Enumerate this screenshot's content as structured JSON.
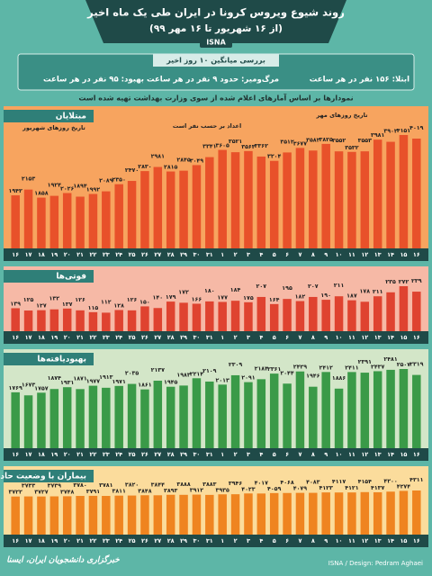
{
  "header": {
    "title": "روند شیوع ویروس کرونا در ایران طی یک ماه اخیر",
    "subtitle": "(از ۱۶ شهریور تا ۱۶ مهر ۹۹)",
    "agency": "ISNA"
  },
  "summary": {
    "heading": "بررسی میانگین ۱۰ روز اخیر",
    "items": [
      "ابتلا: ۱۵۶ نفر در هر ساعت",
      "مرگ‌ومیر: حدود ۹ نفر در هر ساعت",
      "بهبود: ۹۵ نفر در هر ساعت"
    ]
  },
  "note": "نمودارها بر اساس آمارهای اعلام شده از سوی وزارت بهداشت تهیه شده است",
  "chart_data": [
    {
      "type": "bar",
      "title": "مبتلایان",
      "color": "#e8512a",
      "annotations": [
        "تاریخ روزهای شهریور",
        "تاریخ روزهای مهر",
        "اعداد بر حسب نفر است"
      ],
      "categories": [
        "۱۶",
        "۱۷",
        "۱۸",
        "۱۹",
        "۲۰",
        "۲۱",
        "۲۲",
        "۲۳",
        "۲۴",
        "۲۵",
        "۲۶",
        "۲۷",
        "۲۸",
        "۲۹",
        "۳۰",
        "۳۱",
        "۱",
        "۲",
        "۳",
        "۴",
        "۵",
        "۶",
        "۷",
        "۸",
        "۹",
        "۱۰",
        "۱۱",
        "۱۲",
        "۱۳",
        "۱۴",
        "۱۵",
        "۱۶"
      ],
      "values": [
        1942,
        2153,
        1858,
        1924,
        2026,
        1894,
        1992,
        2089,
        2350,
        2470,
        2830,
        2981,
        2815,
        2845,
        3049,
        3341,
        3605,
        3521,
        3563,
        3362,
        3204,
        3512,
        3677,
        3582,
        3825,
        3552,
        3532,
        3553,
        3981,
        3902,
        4151,
        4019
      ],
      "value_labels": [
        "۱۹۴۲",
        "۲۱۵۳",
        "۱۸۵۸",
        "۱۹۲۴",
        "۲۰۲۶",
        "۱۸۹۴",
        "۱۹۹۲",
        "۲۰۸۹",
        "۲۳۵۰",
        "۲۴۷۰",
        "۲۸۳۰",
        "۲۹۸۱",
        "۲۸۱۵",
        "۲۸۴۵",
        "۳۰۴۹",
        "۳۳۴۱",
        "۳۶۰۵",
        "۳۵۲۱",
        "۳۵۶۳",
        "۳۳۶۲",
        "۳۲۰۴",
        "۳۵۱۲",
        "۳۶۷۷",
        "۳۵۸۲",
        "۳۸۲۵",
        "۳۵۵۲",
        "۳۵۳۲",
        "۳۵۵۳",
        "۳۹۸۱",
        "۳۹۰۲",
        "۴۱۵۱",
        "۴۰۱۹"
      ]
    },
    {
      "type": "bar",
      "title": "فوتی‌ها",
      "color": "#df4330",
      "categories": [
        "۱۶",
        "۱۷",
        "۱۸",
        "۱۹",
        "۲۰",
        "۲۱",
        "۲۲",
        "۲۳",
        "۲۴",
        "۲۵",
        "۲۶",
        "۲۷",
        "۲۸",
        "۲۹",
        "۳۰",
        "۳۱",
        "۱",
        "۲",
        "۳",
        "۴",
        "۵",
        "۶",
        "۷",
        "۸",
        "۹",
        "۱۰",
        "۱۱",
        "۱۲",
        "۱۳",
        "۱۴",
        "۱۵",
        "۱۶"
      ],
      "values": [
        139,
        125,
        127,
        132,
        137,
        126,
        115,
        112,
        128,
        126,
        150,
        140,
        179,
        172,
        166,
        180,
        177,
        184,
        175,
        207,
        164,
        195,
        182,
        207,
        190,
        211,
        187,
        178,
        211,
        235,
        272,
        239
      ],
      "value_labels": [
        "۱۳۹",
        "۱۲۵",
        "۱۲۷",
        "۱۳۲",
        "۱۳۷",
        "۱۲۶",
        "۱۱۵",
        "۱۱۲",
        "۱۲۸",
        "۱۲۶",
        "۱۵۰",
        "۱۴۰",
        "۱۷۹",
        "۱۷۲",
        "۱۶۶",
        "۱۸۰",
        "۱۷۷",
        "۱۸۴",
        "۱۷۵",
        "۲۰۷",
        "۱۶۴",
        "۱۹۵",
        "۱۸۲",
        "۲۰۷",
        "۱۹۰",
        "۲۱۱",
        "۱۸۷",
        "۱۷۸",
        "۲۱۱",
        "۲۳۵",
        "۲۷۲",
        "۲۳۹"
      ]
    },
    {
      "type": "bar",
      "title": "بهبودیافته‌ها",
      "color": "#3a9a48",
      "categories": [
        "۱۶",
        "۱۷",
        "۱۸",
        "۱۹",
        "۲۰",
        "۲۱",
        "۲۲",
        "۲۳",
        "۲۴",
        "۲۵",
        "۲۶",
        "۲۷",
        "۲۸",
        "۲۹",
        "۳۰",
        "۳۱",
        "۱",
        "۲",
        "۳",
        "۴",
        "۵",
        "۶",
        "۷",
        "۸",
        "۹",
        "۱۰",
        "۱۱",
        "۱۲",
        "۱۳",
        "۱۴",
        "۱۵",
        "۱۶"
      ],
      "values": [
        1769,
        1673,
        1757,
        1874,
        1931,
        1871,
        1977,
        1913,
        1971,
        2035,
        1861,
        2137,
        1945,
        1983,
        2214,
        2109,
        2013,
        2309,
        2091,
        2184,
        2361,
        2044,
        2429,
        1946,
        2412,
        1886,
        2411,
        2391,
        2437,
        2481,
        2507,
        2319
      ],
      "value_labels": [
        "۱۷۶۹",
        "۱۶۷۳",
        "۱۷۵۷",
        "۱۸۷۴",
        "۱۹۳۱",
        "۱۸۷۱",
        "۱۹۷۷",
        "۱۹۱۳",
        "۱۹۷۱",
        "۲۰۳۵",
        "۱۸۶۱",
        "۲۱۳۷",
        "۱۹۴۵",
        "۱۹۸۳",
        "۲۲۱۴",
        "۲۱۰۹",
        "۲۰۱۳",
        "۲۳۰۹",
        "۲۰۹۱",
        "۲۱۸۴",
        "۲۳۶۱",
        "۲۰۴۴",
        "۲۴۲۹",
        "۱۹۴۶",
        "۲۴۱۲",
        "۱۸۸۶",
        "۲۴۱۱",
        "۲۳۹۱",
        "۲۴۳۷",
        "۲۴۸۱",
        "۲۵۰۷",
        "۲۳۱۹"
      ]
    },
    {
      "type": "bar",
      "title": "بیماران با وضعیت حاد",
      "color": "#ef8420",
      "categories": [
        "۱۶",
        "۱۷",
        "۱۸",
        "۱۹",
        "۲۰",
        "۲۱",
        "۲۲",
        "۲۳",
        "۲۴",
        "۲۵",
        "۲۶",
        "۲۷",
        "۲۸",
        "۲۹",
        "۳۰",
        "۳۱",
        "۱",
        "۲",
        "۳",
        "۴",
        "۵",
        "۶",
        "۷",
        "۸",
        "۹",
        "۱۰",
        "۱۱",
        "۱۲",
        "۱۳",
        "۱۴",
        "۱۵",
        "۱۶"
      ],
      "values": [
        3722,
        3733,
        3727,
        3739,
        3748,
        3780,
        3791,
        3781,
        3811,
        3820,
        3848,
        3844,
        3893,
        3888,
        3912,
        3883,
        3935,
        3946,
        4023,
        4017,
        4059,
        4068,
        4079,
        4083,
        4123,
        4117,
        4121,
        4154,
        4137,
        4200,
        4274,
        4311
      ],
      "value_labels": [
        "۳۷۲۲",
        "۳۷۳۳",
        "۳۷۲۷",
        "۳۷۳۹",
        "۳۷۴۸",
        "۳۷۸۰",
        "۳۷۹۱",
        "۳۷۸۱",
        "۳۸۱۱",
        "۳۸۲۰",
        "۳۸۴۸",
        "۳۸۴۴",
        "۳۸۹۳",
        "۳۸۸۸",
        "۳۹۱۲",
        "۳۸۸۳",
        "۳۹۳۵",
        "۳۹۴۶",
        "۴۰۲۳",
        "۴۰۱۷",
        "۴۰۵۹",
        "۴۰۶۸",
        "۴۰۷۹",
        "۴۰۸۳",
        "۴۱۲۳",
        "۴۱۱۷",
        "۴۱۲۱",
        "۴۱۵۴",
        "۴۱۳۷",
        "۴۲۰۰",
        "۴۲۷۴",
        "۴۳۱۱"
      ]
    }
  ],
  "footer": {
    "logo": "خبرگزاری دانشجویان ایران، ایسنا",
    "credit": "ISNA / Design: Pedram Aghaei"
  }
}
